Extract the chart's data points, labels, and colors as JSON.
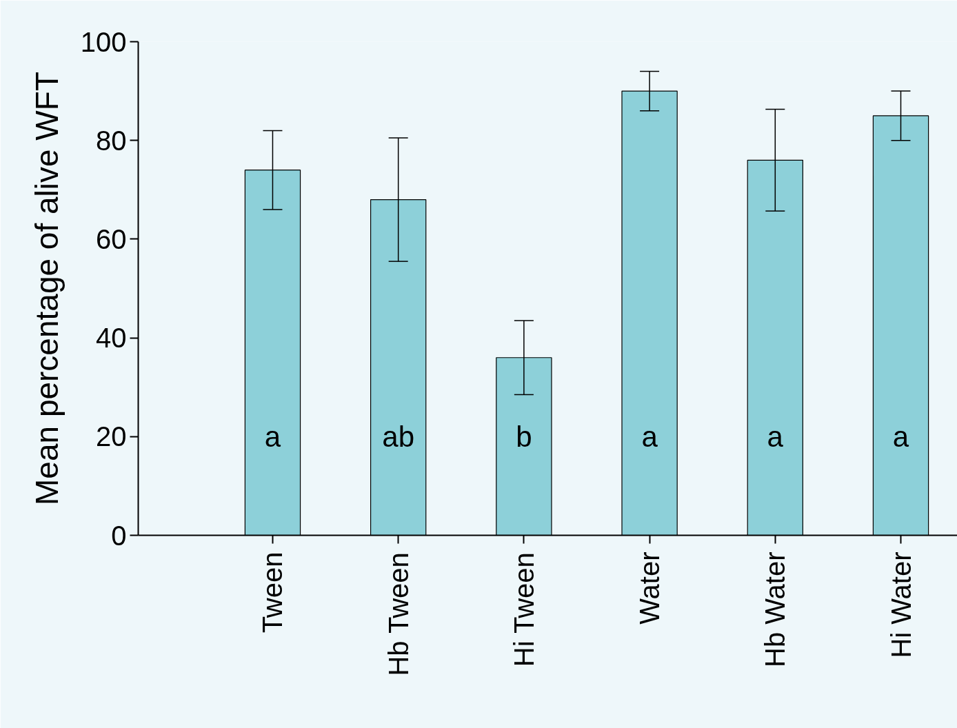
{
  "chart_data": {
    "type": "bar",
    "ylabel": "Mean percentage of alive WFT",
    "categories": [
      "Tween",
      "Hb Tween",
      "Hi Tween",
      "Water",
      "Hb Water",
      "Hi Water"
    ],
    "values": [
      74,
      68,
      36,
      90,
      76,
      85
    ],
    "errors": [
      8,
      12.5,
      7.5,
      4,
      10.3,
      5
    ],
    "color": "#8dd0d9",
    "ylim": [
      0,
      100
    ],
    "yticks": [
      0,
      20,
      40,
      60,
      80,
      100
    ],
    "grid": false,
    "annotations": [
      "a",
      "ab",
      "b",
      "a",
      "a",
      "a"
    ]
  }
}
